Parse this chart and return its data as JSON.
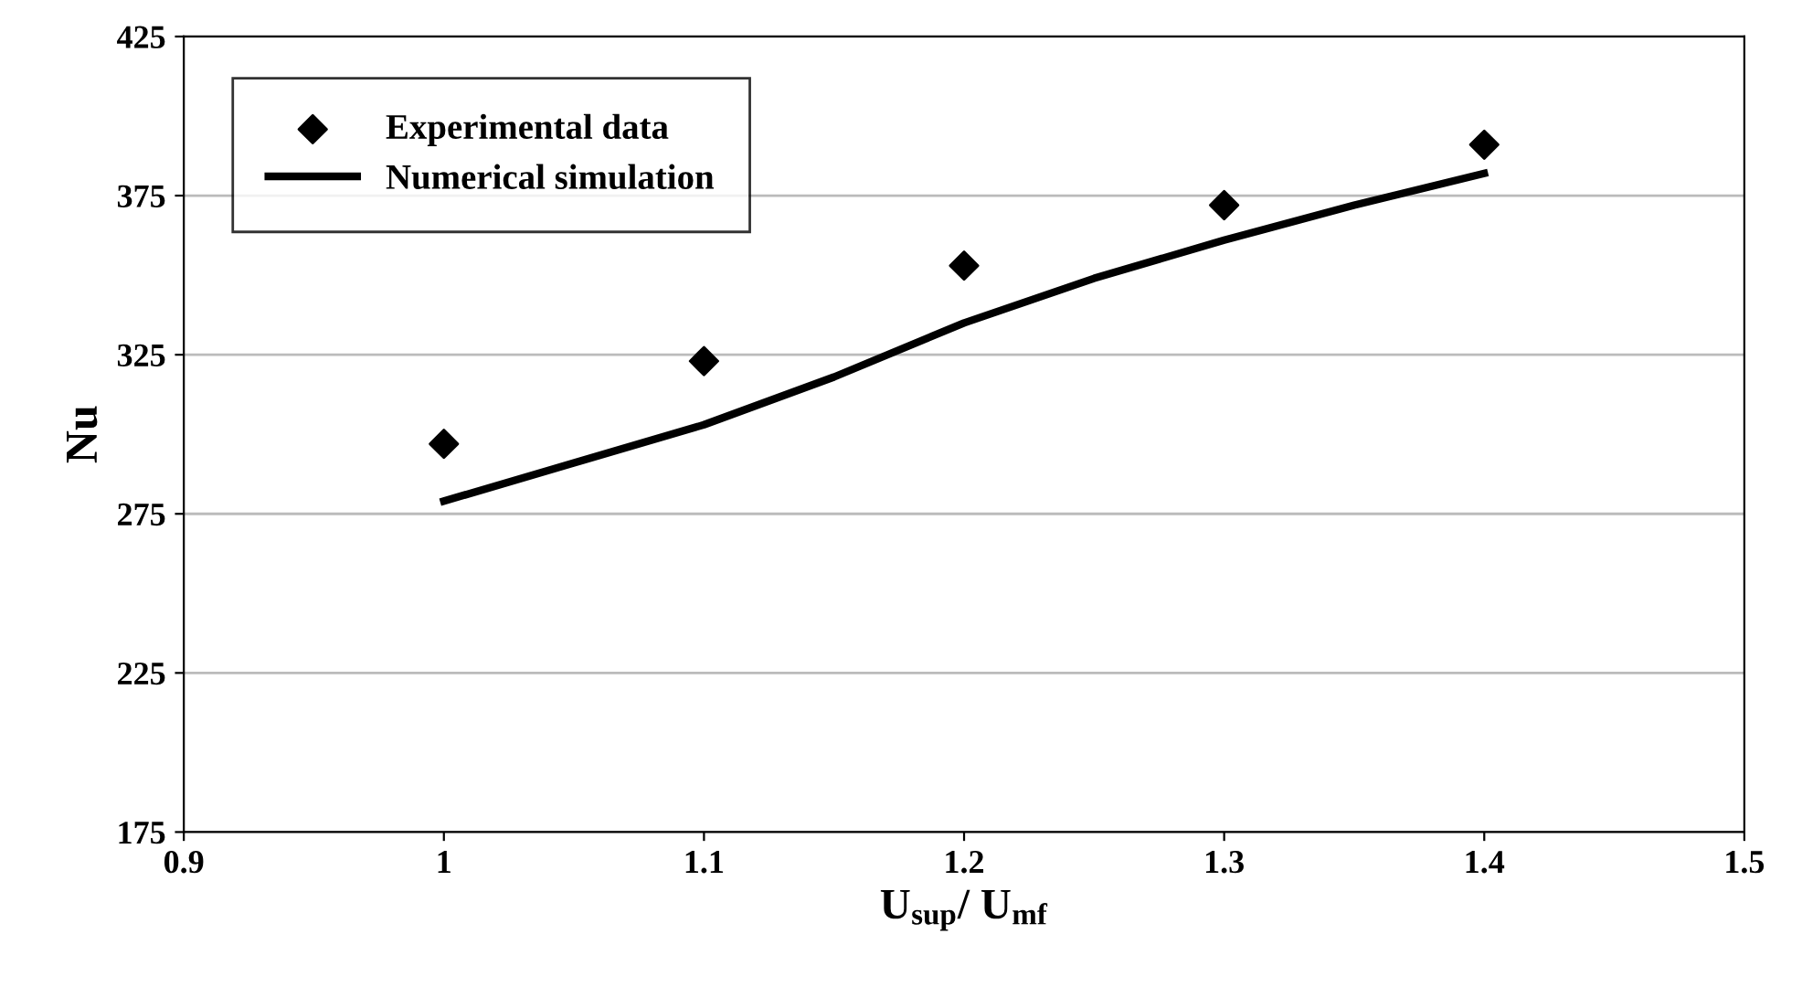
{
  "chart_data": {
    "type": "scatter",
    "xlabel": "U$_{sup}$/ U$_{mf}$",
    "ylabel": "Nu",
    "xlim": [
      0.9,
      1.5
    ],
    "xticks": [
      0.9,
      1,
      1.1,
      1.2,
      1.3,
      1.4,
      1.5
    ],
    "ylim": [
      175,
      425
    ],
    "yticks": [
      175,
      225,
      275,
      325,
      375,
      425
    ],
    "grid": "y",
    "legend": "top left",
    "series": [
      {
        "name": "Experimental data",
        "marker": "diamond",
        "color": "#000000",
        "x": [
          1,
          1.1,
          1.2,
          1.3,
          1.4
        ],
        "values": [
          297,
          323,
          353,
          372,
          391
        ]
      },
      {
        "name": "Numerical simulation",
        "type": "line",
        "marker": "none",
        "line_style": "solid",
        "color": "#000000",
        "x": [
          1,
          1.05,
          1.1,
          1.15,
          1.2,
          1.25,
          1.3,
          1.35,
          1.4
        ],
        "values": [
          279,
          291,
          303,
          318,
          335,
          349,
          361,
          372,
          382
        ]
      }
    ]
  }
}
